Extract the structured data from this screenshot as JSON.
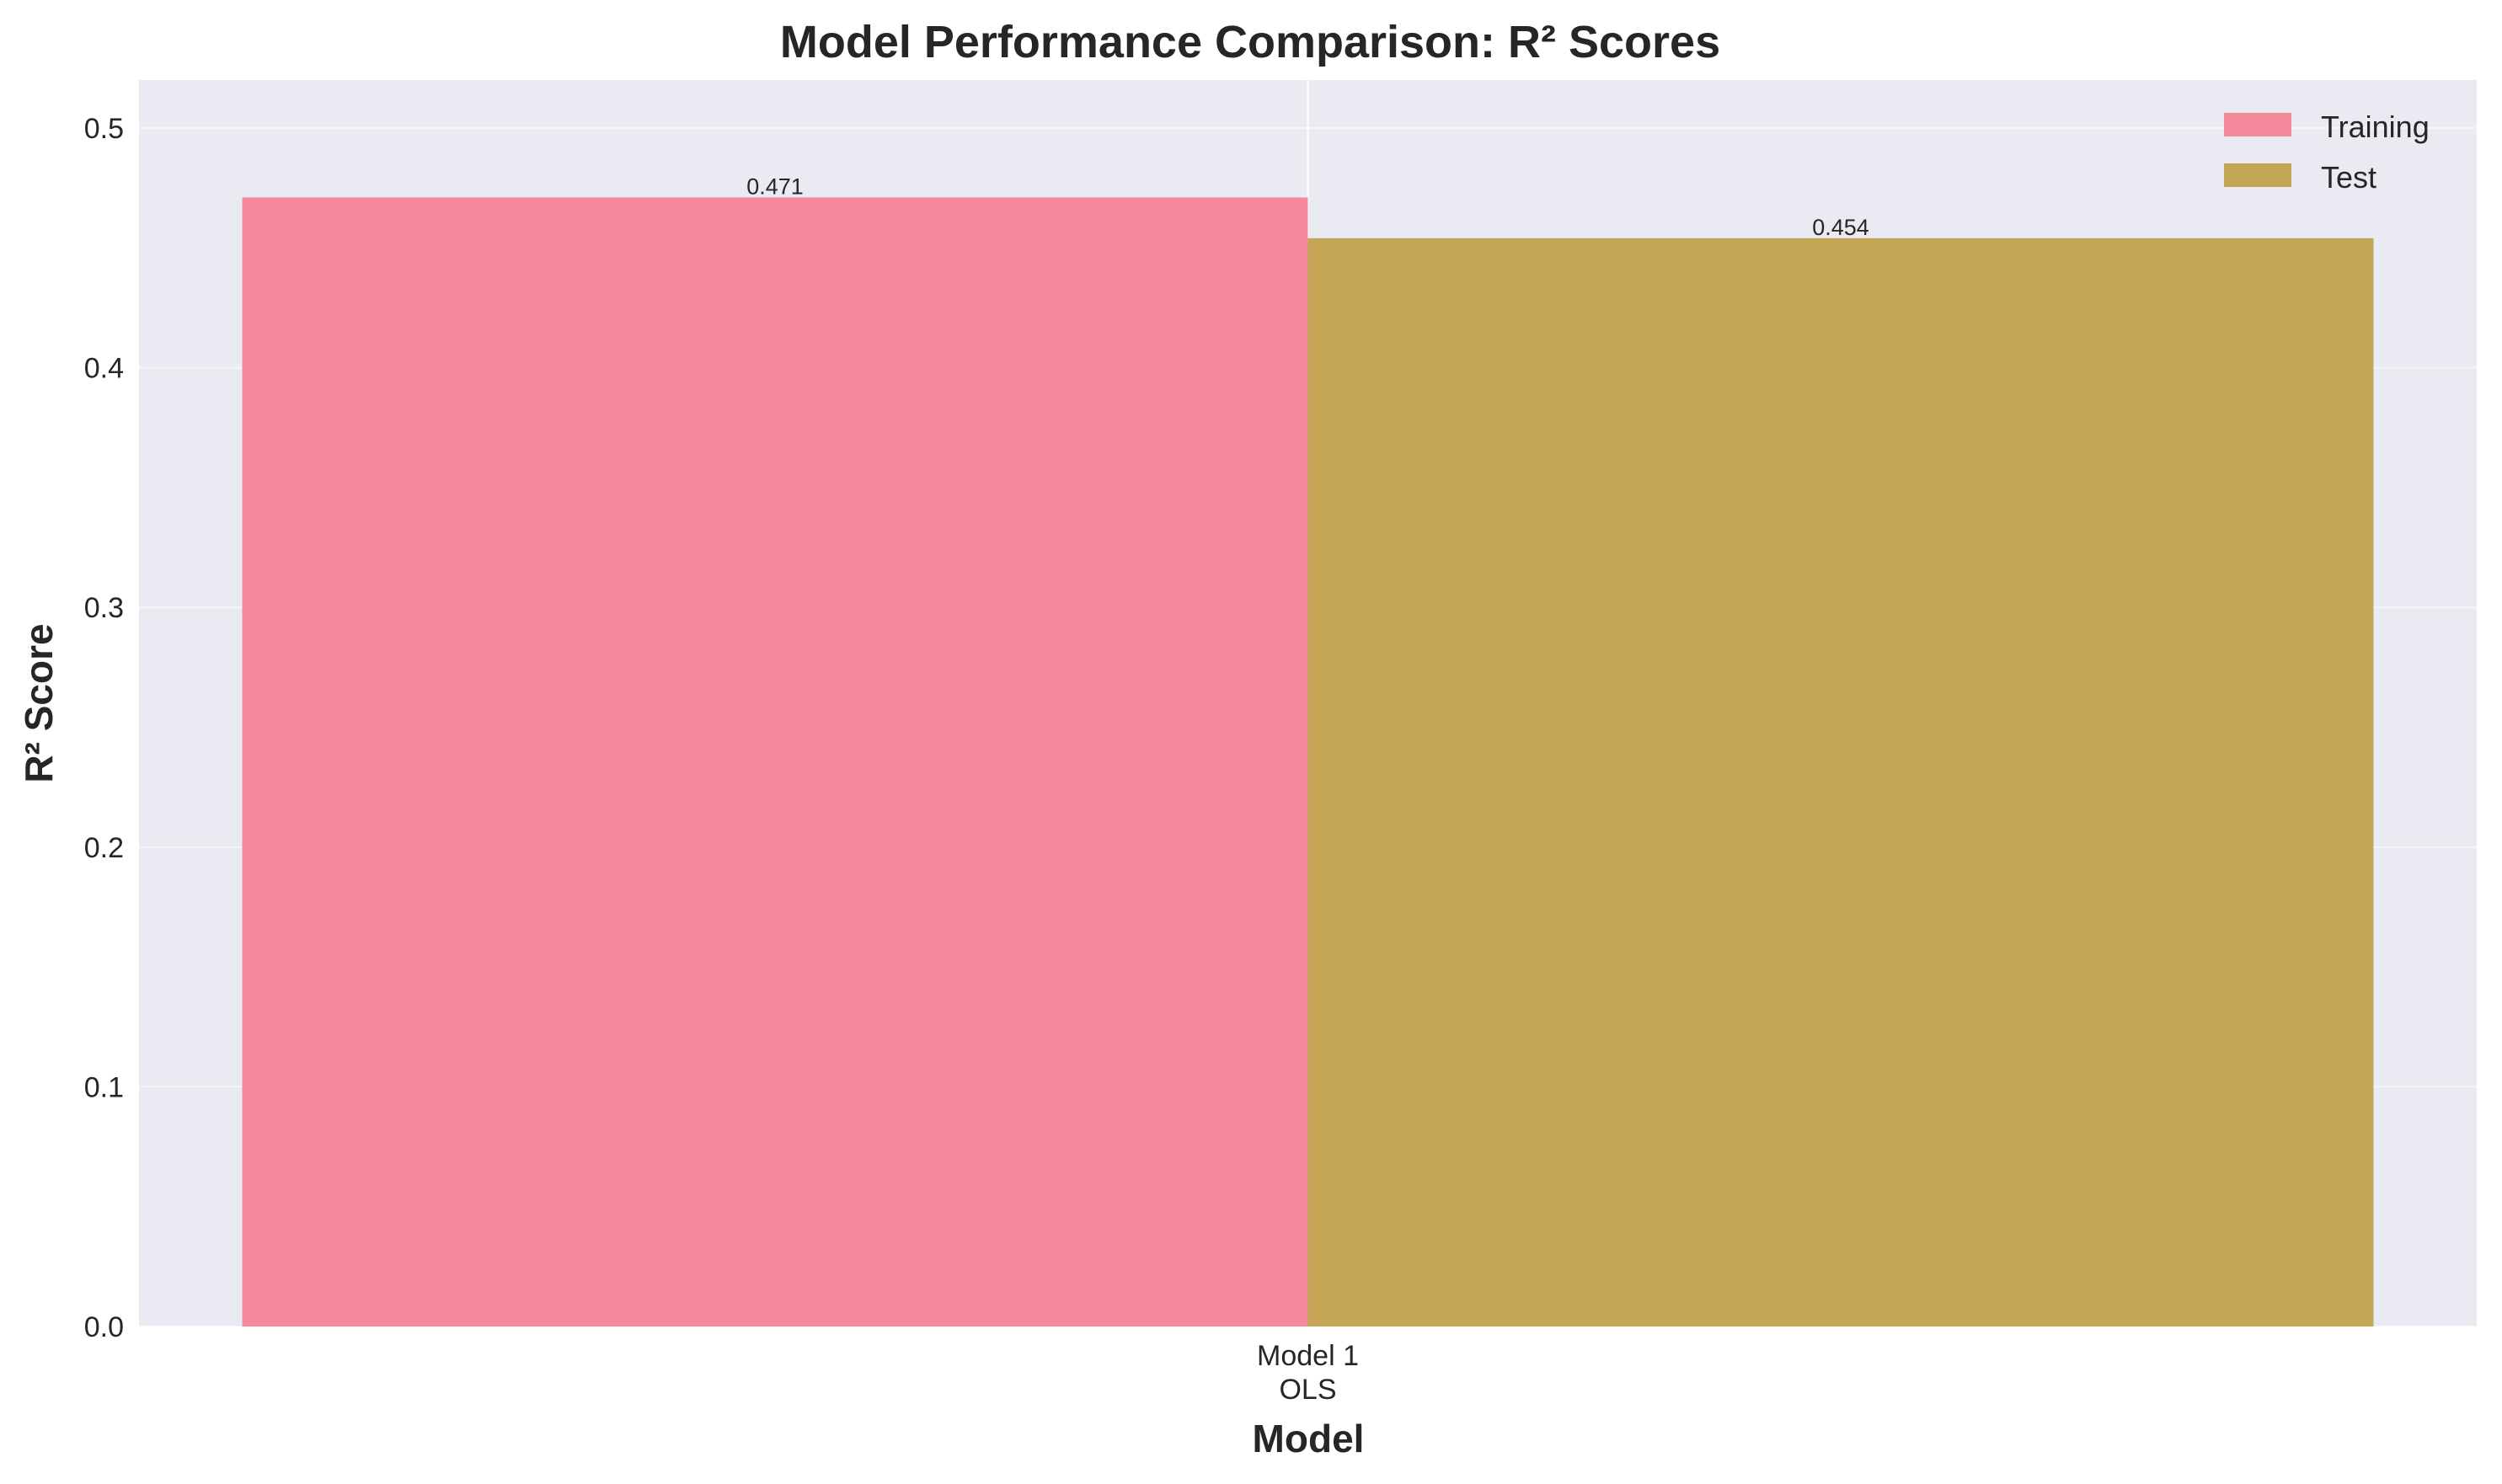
{
  "chart_data": {
    "type": "bar",
    "title": "Model Performance Comparison: R² Scores",
    "xlabel": "Model",
    "ylabel": "R² Score",
    "categories": [
      {
        "line1": "Model 1",
        "line2": "OLS"
      }
    ],
    "series": [
      {
        "name": "Training",
        "values": [
          0.471
        ],
        "labels": [
          "0.471"
        ],
        "color": "#f3899b"
      },
      {
        "name": "Test",
        "values": [
          0.454
        ],
        "labels": [
          "0.454"
        ],
        "color": "#c4a656"
      }
    ],
    "ylim": [
      0,
      0.52
    ],
    "yticks": [
      0.0,
      0.1,
      0.2,
      0.3,
      0.4,
      0.5
    ],
    "ytick_labels": [
      "0.0",
      "0.1",
      "0.2",
      "0.3",
      "0.4",
      "0.5"
    ],
    "grid": true,
    "legend_position": "top-right",
    "background_color": "#eaeaf2",
    "grid_color": "#ffffff"
  }
}
